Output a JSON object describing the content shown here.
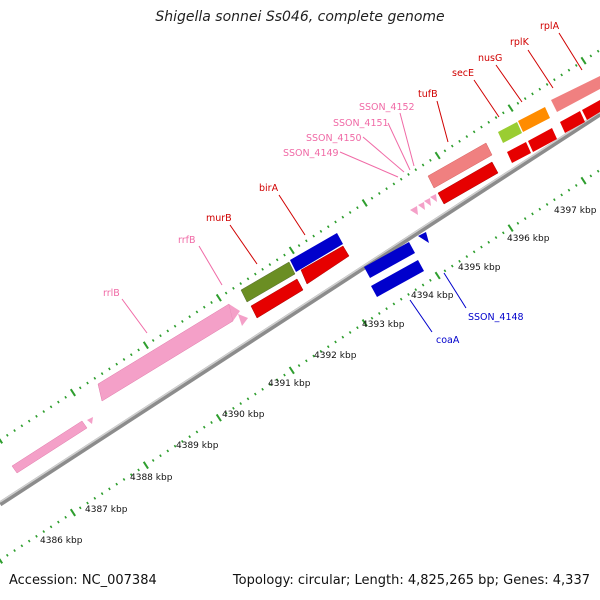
{
  "title": "Shigella sonnei Ss046, complete genome",
  "footer": {
    "accession": "Accession: NC_007384",
    "stats": "Topology: circular; Length: 4,825,265 bp; Genes: 4,337"
  },
  "colors": {
    "backbone": "#9a9a9a",
    "tick": "#2e9e2e",
    "label_red": "#d00000",
    "label_pink": "#f06aa6",
    "label_blue": "#0000cc"
  },
  "scale_labels": [
    "4386 kbp",
    "4387 kbp",
    "4388 kbp",
    "4389 kbp",
    "4390 kbp",
    "4391 kbp",
    "4392 kbp",
    "4393 kbp",
    "4394 kbp",
    "4395 kbp",
    "4396 kbp",
    "4397 kbp"
  ],
  "gene_labels": [
    {
      "text": "rrlB",
      "color": "#f06aa6"
    },
    {
      "text": "rrfB",
      "color": "#f06aa6"
    },
    {
      "text": "murB",
      "color": "#d00000"
    },
    {
      "text": "birA",
      "color": "#d00000"
    },
    {
      "text": "SSON_4149",
      "color": "#f06aa6"
    },
    {
      "text": "SSON_4150",
      "color": "#f06aa6"
    },
    {
      "text": "SSON_4151",
      "color": "#f06aa6"
    },
    {
      "text": "SSON_4152",
      "color": "#f06aa6"
    },
    {
      "text": "tufB",
      "color": "#d00000"
    },
    {
      "text": "secE",
      "color": "#d00000"
    },
    {
      "text": "nusG",
      "color": "#d00000"
    },
    {
      "text": "rplK",
      "color": "#d00000"
    },
    {
      "text": "rplA",
      "color": "#d00000"
    },
    {
      "text": "coaA",
      "color": "#0000cc"
    },
    {
      "text": "SSON_4148",
      "color": "#0000cc"
    }
  ]
}
